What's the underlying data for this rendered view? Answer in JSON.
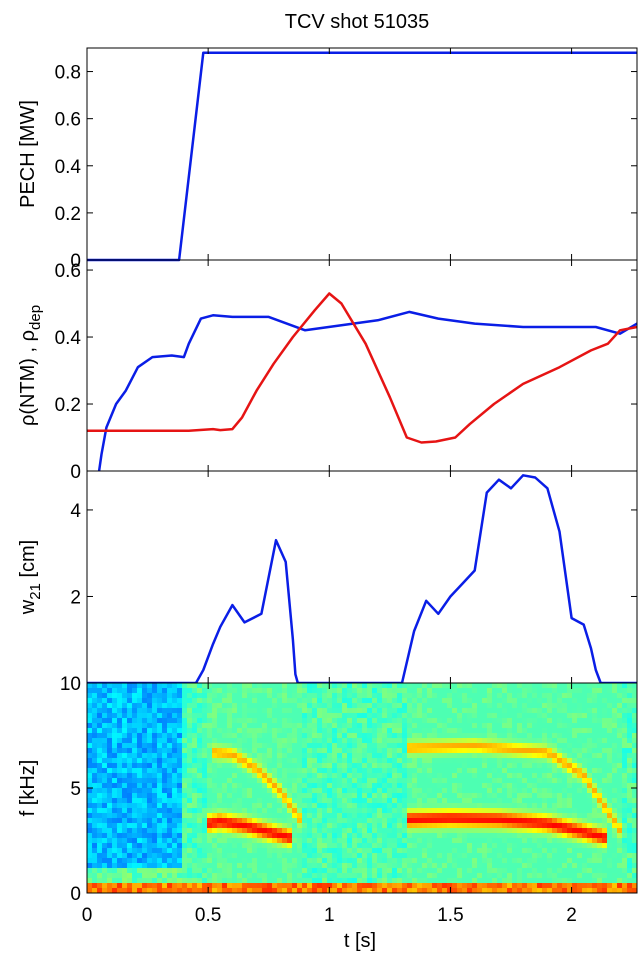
{
  "figure": {
    "title": "TCV shot 51035",
    "xlabel": "t [s]",
    "x_ticks": [
      "0",
      "0.5",
      "1",
      "1.5",
      "2"
    ]
  },
  "chart_data": [
    {
      "type": "line",
      "ylabel": "PECH [MW]",
      "xlim": [
        0,
        2.27
      ],
      "ylim": [
        0,
        0.9
      ],
      "y_ticks": [
        "0",
        "0.2",
        "0.4",
        "0.6",
        "0.8"
      ],
      "series": [
        {
          "color": "#0a1ee6",
          "x": [
            0,
            0.38,
            0.48,
            2.27
          ],
          "y": [
            0,
            0,
            0.88,
            0.88
          ]
        }
      ]
    },
    {
      "type": "line",
      "ylabel": "ρ(NTM) , ρdep",
      "xlim": [
        0,
        2.27
      ],
      "ylim": [
        0,
        0.63
      ],
      "y_ticks": [
        "0",
        "0.2",
        "0.4",
        "0.6"
      ],
      "series": [
        {
          "color": "#0a1ee6",
          "x": [
            0.05,
            0.06,
            0.08,
            0.12,
            0.16,
            0.21,
            0.27,
            0.35,
            0.4,
            0.42,
            0.47,
            0.52,
            0.6,
            0.75,
            0.9,
            1.05,
            1.2,
            1.33,
            1.45,
            1.6,
            1.8,
            2.0,
            2.1,
            2.2,
            2.27
          ],
          "y": [
            0,
            0.05,
            0.13,
            0.2,
            0.24,
            0.31,
            0.34,
            0.345,
            0.34,
            0.38,
            0.455,
            0.465,
            0.46,
            0.46,
            0.42,
            0.435,
            0.45,
            0.475,
            0.455,
            0.44,
            0.43,
            0.43,
            0.43,
            0.41,
            0.44
          ]
        },
        {
          "color": "#e61414",
          "x": [
            0,
            0.2,
            0.42,
            0.52,
            0.55,
            0.6,
            0.64,
            0.7,
            0.77,
            0.85,
            0.94,
            1.0,
            1.05,
            1.15,
            1.25,
            1.32,
            1.38,
            1.44,
            1.52,
            1.58,
            1.68,
            1.8,
            1.95,
            2.08,
            2.15,
            2.2,
            2.27
          ],
          "y": [
            0.12,
            0.12,
            0.12,
            0.125,
            0.122,
            0.125,
            0.16,
            0.24,
            0.32,
            0.4,
            0.48,
            0.53,
            0.5,
            0.38,
            0.22,
            0.1,
            0.085,
            0.088,
            0.1,
            0.14,
            0.2,
            0.26,
            0.31,
            0.36,
            0.38,
            0.42,
            0.43
          ]
        }
      ]
    },
    {
      "type": "line",
      "ylabel": "w21 [cm]",
      "xlim": [
        0,
        2.27
      ],
      "ylim": [
        0,
        4.9
      ],
      "y_ticks": [
        "2",
        "4"
      ],
      "series": [
        {
          "color": "#0a1ee6",
          "x": [
            0,
            0.45,
            0.48,
            0.52,
            0.55,
            0.6,
            0.65,
            0.72,
            0.78,
            0.82,
            0.85,
            0.86,
            0.87,
            1.3,
            1.35,
            1.4,
            1.45,
            1.5,
            1.55,
            1.6,
            1.65,
            1.7,
            1.75,
            1.8,
            1.85,
            1.9,
            1.95,
            2.0,
            2.05,
            2.08,
            2.1,
            2.12,
            2.15,
            2.17,
            2.2,
            2.27
          ],
          "y": [
            0,
            0,
            0.3,
            0.9,
            1.3,
            1.8,
            1.4,
            1.6,
            3.3,
            2.8,
            1.0,
            0.2,
            0,
            0,
            1.2,
            1.9,
            1.6,
            2.0,
            2.3,
            2.6,
            4.4,
            4.7,
            4.5,
            4.8,
            4.75,
            4.5,
            3.5,
            1.5,
            1.35,
            0.8,
            0.3,
            0,
            0,
            0,
            0,
            0
          ]
        }
      ]
    },
    {
      "type": "heatmap",
      "ylabel": "f [kHz]",
      "xlim": [
        0,
        2.27
      ],
      "ylim": [
        0,
        10
      ],
      "y_ticks": [
        "0",
        "5",
        "10"
      ],
      "colormap": "jet",
      "ridges": [
        {
          "x": [
            0.5,
            0.55,
            0.65,
            0.75,
            0.85
          ],
          "y": [
            3.3,
            3.4,
            3.2,
            2.9,
            2.6
          ],
          "intensity": "high"
        },
        {
          "x": [
            0.52,
            0.6,
            0.7,
            0.8,
            0.88
          ],
          "y": [
            6.7,
            6.6,
            5.9,
            4.8,
            3.5
          ],
          "intensity": "medium"
        },
        {
          "x": [
            1.33,
            1.5,
            1.7,
            1.9,
            2.05,
            2.15
          ],
          "y": [
            3.5,
            3.55,
            3.5,
            3.3,
            2.9,
            2.6
          ],
          "intensity": "high"
        },
        {
          "x": [
            1.33,
            1.6,
            1.9,
            2.05,
            2.2
          ],
          "y": [
            6.9,
            7.0,
            6.7,
            5.6,
            3.0
          ],
          "intensity": "medium"
        }
      ]
    }
  ]
}
